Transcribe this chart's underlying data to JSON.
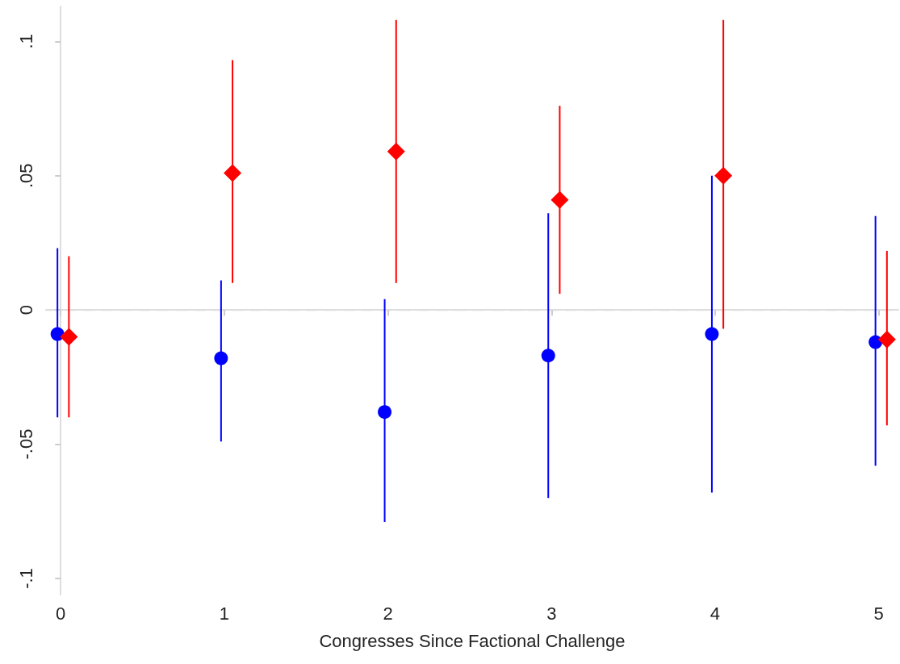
{
  "chart_data": {
    "type": "scatter",
    "xlabel": "Congresses Since Factional Challenge",
    "xlim": [
      -0.09,
      5.12
    ],
    "xticks": [
      0,
      1,
      2,
      3,
      4,
      5
    ],
    "ylim": [
      -0.106,
      0.113
    ],
    "yticks": [
      {
        "value": -0.1,
        "label": "-.1"
      },
      {
        "value": -0.05,
        "label": "-.05"
      },
      0,
      {
        "value": 0.05,
        "label": ".05"
      },
      {
        "value": 0.1,
        "label": ".1"
      }
    ],
    "grid": false,
    "ref_lines": [
      {
        "axis": "y",
        "value": 0,
        "color": "#d9d9d9",
        "line_style": "dashed"
      }
    ],
    "series": [
      {
        "color": "#0000ff",
        "marker": "circle",
        "x": [
          -0.02,
          0.98,
          1.98,
          2.98,
          3.98,
          4.98
        ],
        "values": [
          -0.009,
          -0.018,
          -0.038,
          -0.017,
          -0.009,
          -0.012
        ],
        "errors": [
          [
            -0.04,
            0.023
          ],
          [
            -0.049,
            0.011
          ],
          [
            -0.079,
            0.004
          ],
          [
            -0.07,
            0.036
          ],
          [
            -0.068,
            0.05
          ],
          [
            -0.058,
            0.035
          ]
        ]
      },
      {
        "color": "#ff0000",
        "marker": "diamond",
        "x": [
          0.05,
          1.05,
          2.05,
          3.05,
          4.05,
          5.05
        ],
        "values": [
          -0.01,
          0.051,
          0.059,
          0.041,
          0.05,
          -0.011
        ],
        "errors": [
          [
            -0.04,
            0.02
          ],
          [
            0.01,
            0.093
          ],
          [
            0.01,
            0.108
          ],
          [
            0.006,
            0.076
          ],
          [
            -0.007,
            0.108
          ],
          [
            -0.043,
            0.022
          ]
        ]
      }
    ]
  }
}
